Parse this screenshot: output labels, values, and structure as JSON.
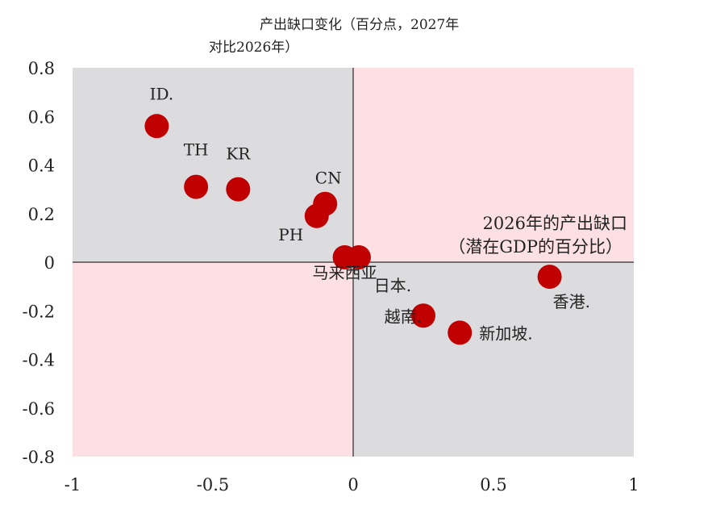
{
  "chart_data": {
    "type": "scatter",
    "title_lines": [
      "产出缺口变化（百分点，2027年",
      "对比2026年）"
    ],
    "xlabel_lines": [
      "2026年的产出缺口",
      "（潜在GDP的百分比）"
    ],
    "xlim": [
      -1,
      1
    ],
    "ylim": [
      -0.8,
      0.8
    ],
    "x_ticks": [
      "-1",
      "-0.5",
      "0",
      "0.5",
      "1"
    ],
    "y_ticks": [
      "0.8",
      "0.6",
      "0.4",
      "0.2",
      "0",
      "-0.2",
      "-0.4",
      "-0.6",
      "-0.8"
    ],
    "grid": false,
    "quadrant_colors": {
      "upper_left": "#dcdcde",
      "upper_right": "#fde0e3",
      "lower_left": "#fde0e3",
      "lower_right": "#dcdcde"
    },
    "marker_color": "#c00000",
    "points": [
      {
        "label": "ID.",
        "x": -0.7,
        "y": 0.56
      },
      {
        "label": "TH",
        "x": -0.56,
        "y": 0.31
      },
      {
        "label": "KR",
        "x": -0.41,
        "y": 0.3
      },
      {
        "label": "CN",
        "x": -0.1,
        "y": 0.24
      },
      {
        "label": "PH",
        "x": -0.13,
        "y": 0.19
      },
      {
        "label": "马来西亚",
        "x": -0.03,
        "y": 0.02
      },
      {
        "label": "日本.",
        "x": 0.02,
        "y": 0.02
      },
      {
        "label": "越南.",
        "x": 0.25,
        "y": -0.22
      },
      {
        "label": "新加坡.",
        "x": 0.38,
        "y": -0.29
      },
      {
        "label": "香港.",
        "x": 0.7,
        "y": -0.06
      }
    ]
  }
}
